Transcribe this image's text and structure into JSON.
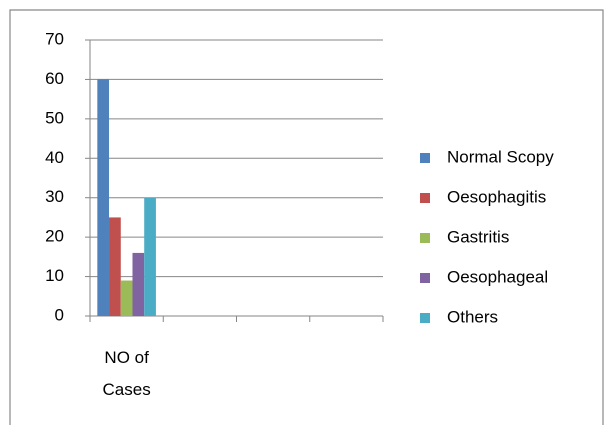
{
  "chart_data": {
    "type": "bar",
    "categories": [
      "NO of Cases",
      null,
      null,
      null
    ],
    "series": [
      {
        "name": "Normal Scopy",
        "color": "#4f81bd",
        "values": [
          60,
          null,
          null,
          null
        ]
      },
      {
        "name": "Oesophagitis",
        "color": "#c0504d",
        "values": [
          25,
          null,
          null,
          null
        ]
      },
      {
        "name": "Gastritis",
        "color": "#9bbb59",
        "values": [
          9,
          null,
          null,
          null
        ]
      },
      {
        "name": "Oesophageal",
        "color": "#8064a2",
        "values": [
          16,
          null,
          null,
          null
        ]
      },
      {
        "name": "Others",
        "color": "#4bacc6",
        "values": [
          30,
          null,
          null,
          null
        ]
      }
    ],
    "ylim": [
      0,
      70
    ],
    "yticks": [
      0,
      10,
      20,
      30,
      40,
      50,
      60,
      70
    ],
    "grid": true,
    "legend": "right"
  }
}
